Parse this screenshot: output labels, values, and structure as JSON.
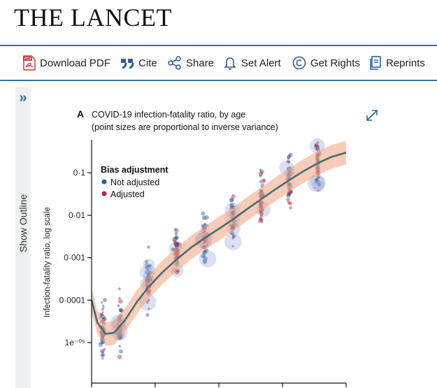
{
  "masthead": {
    "logo": "THE LANCET"
  },
  "toolbar": {
    "download_pdf": "Download PDF",
    "cite": "Cite",
    "share": "Share",
    "set_alert": "Set Alert",
    "get_rights": "Get Rights",
    "reprints": "Reprints",
    "pdf_icon_text": "PDF"
  },
  "sidebar": {
    "toggle": "»",
    "label": "Show Outline"
  },
  "figure": {
    "panel_letter": "A",
    "title_line1": "COVID-19 infection-fatality ratio, by age",
    "title_line2": "(point sizes are proportional to inverse variance)",
    "legend_title": "Bias adjustment",
    "legend_not_adjusted": "Not adjusted",
    "legend_adjusted": "Adjusted"
  },
  "chart_data": {
    "type": "scatter",
    "title": "COVID-19 infection-fatality ratio, by age",
    "subtitle": "(point sizes are proportional to inverse variance)",
    "ylabel": "Infection-fatality ratio, log scale",
    "xlabel": "",
    "y_scale": "log",
    "ylim": [
      1.5e-06,
      0.6
    ],
    "y_ticks": [
      {
        "value": 0.1,
        "label": "0·1"
      },
      {
        "value": 0.01,
        "label": "0·01"
      },
      {
        "value": 0.001,
        "label": "0·001"
      },
      {
        "value": 0.0001,
        "label": "0·0001"
      },
      {
        "value": 1e-05,
        "label": "1e⁻⁰⁵"
      }
    ],
    "xlim": [
      0,
      90
    ],
    "legend": {
      "title": "Bias adjustment",
      "placement": "top-left"
    },
    "series": [
      {
        "name": "Not adjusted",
        "color": "#2a5a9e"
      },
      {
        "name": "Adjusted",
        "color": "#b5203a"
      }
    ],
    "fit_curve": {
      "color": "#4a6b72",
      "band_color": "#f1a27d",
      "x": [
        0,
        2,
        5,
        8,
        12,
        16,
        20,
        25,
        30,
        35,
        40,
        45,
        50,
        55,
        60,
        65,
        70,
        75,
        80,
        85,
        90
      ],
      "y": [
        0.0001,
        3e-05,
        1.6e-05,
        1.7e-05,
        3.5e-05,
        9e-05,
        0.0002,
        0.00045,
        0.0009,
        0.0017,
        0.0029,
        0.0048,
        0.008,
        0.014,
        0.024,
        0.041,
        0.068,
        0.11,
        0.17,
        0.24,
        0.3
      ]
    },
    "clusters": [
      {
        "x": 4,
        "y": 2.5e-05
      },
      {
        "x": 10,
        "y": 3e-05
      },
      {
        "x": 20,
        "y": 0.00025
      },
      {
        "x": 30,
        "y": 0.0015
      },
      {
        "x": 40,
        "y": 0.003
      },
      {
        "x": 50,
        "y": 0.0085
      },
      {
        "x": 60,
        "y": 0.025
      },
      {
        "x": 70,
        "y": 0.08
      },
      {
        "x": 80,
        "y": 0.17
      }
    ]
  }
}
